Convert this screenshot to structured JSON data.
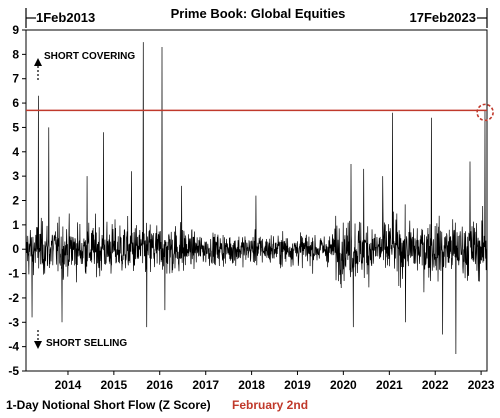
{
  "chart_data": {
    "type": "line",
    "title": "Prime Book: Global Equities",
    "range_start_label": "1Feb2013",
    "range_end_label": "17Feb2023",
    "xlabel": "",
    "ylabel": "",
    "x_range": [
      "2013-02-01",
      "2023-02-17"
    ],
    "ylim": [
      -5,
      9
    ],
    "y_ticks": [
      -5,
      -4,
      -3,
      -2,
      -1,
      0,
      1,
      2,
      3,
      4,
      5,
      6,
      7,
      8,
      9
    ],
    "x_ticks": [
      "2014",
      "2015",
      "2016",
      "2017",
      "2018",
      "2019",
      "2020",
      "2021",
      "2022",
      "2023"
    ],
    "reference_line": {
      "y": 5.7,
      "color": "#c0392b"
    },
    "highlight_circle": {
      "x": "2023-02-02",
      "y": 5.7,
      "color": "#c0392b"
    },
    "grid": false,
    "series_color": "#000000",
    "spikes": [
      {
        "x": "2013-05-10",
        "y": 6.3
      },
      {
        "x": "2013-03-20",
        "y": -2.8
      },
      {
        "x": "2013-08-01",
        "y": 5.0
      },
      {
        "x": "2013-11-15",
        "y": -3.0
      },
      {
        "x": "2014-06-01",
        "y": 3.0
      },
      {
        "x": "2014-10-10",
        "y": 4.8
      },
      {
        "x": "2015-05-20",
        "y": 3.2
      },
      {
        "x": "2015-08-24",
        "y": 8.5
      },
      {
        "x": "2015-09-20",
        "y": -3.2
      },
      {
        "x": "2016-01-20",
        "y": 8.3
      },
      {
        "x": "2016-02-10",
        "y": -2.5
      },
      {
        "x": "2016-06-24",
        "y": 2.6
      },
      {
        "x": "2018-02-05",
        "y": 2.2
      },
      {
        "x": "2020-03-01",
        "y": 3.5
      },
      {
        "x": "2020-03-20",
        "y": -3.2
      },
      {
        "x": "2020-06-10",
        "y": 3.3
      },
      {
        "x": "2020-11-09",
        "y": 3.0
      },
      {
        "x": "2021-01-27",
        "y": 5.6
      },
      {
        "x": "2021-05-10",
        "y": -3.0
      },
      {
        "x": "2021-12-01",
        "y": 5.4
      },
      {
        "x": "2022-03-01",
        "y": -3.5
      },
      {
        "x": "2022-06-15",
        "y": -4.3
      },
      {
        "x": "2022-10-05",
        "y": 3.6
      },
      {
        "x": "2023-02-02",
        "y": 5.7
      }
    ]
  },
  "annotations": {
    "short_covering": "SHORT COVERING",
    "short_selling": "SHORT SELLING"
  },
  "footer": {
    "left_text": "1-Day Notional Short Flow (Z Score)",
    "right_text": "February 2nd",
    "right_color": "#c0392b"
  }
}
